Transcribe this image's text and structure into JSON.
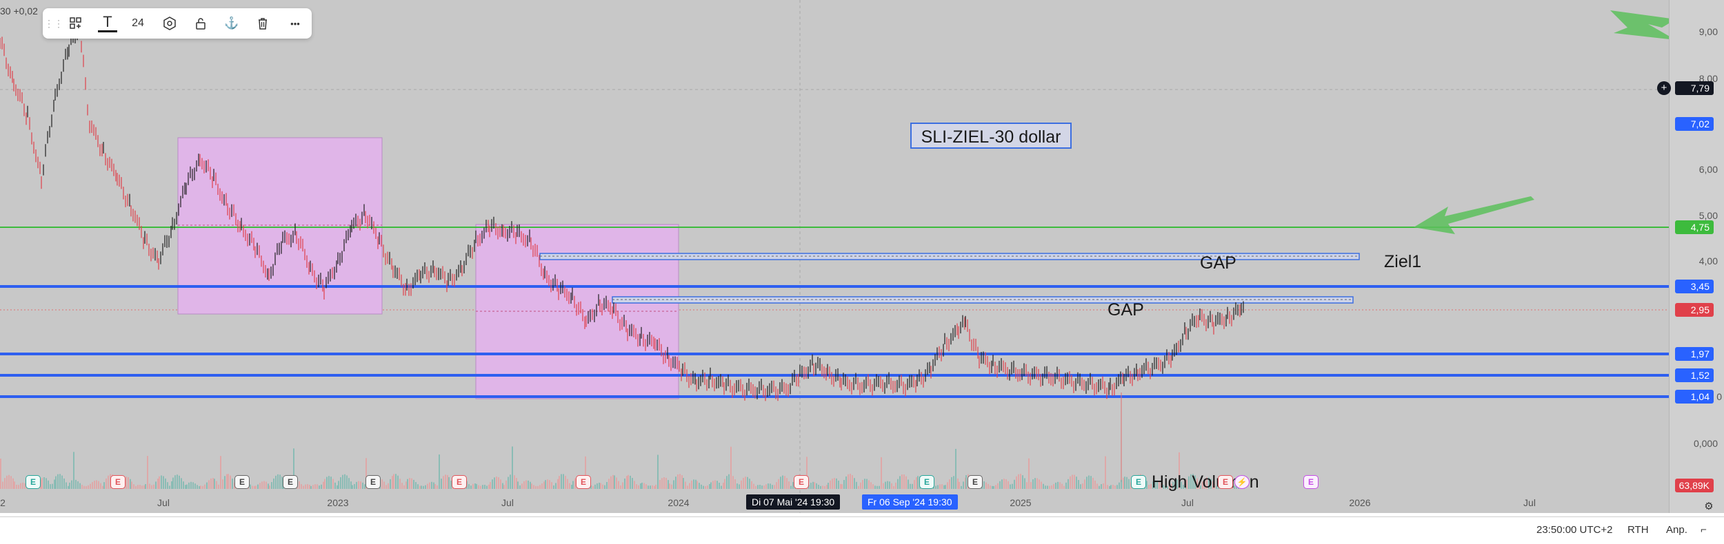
{
  "top_left_value": "30  +0,02",
  "toolbar": {
    "items": [
      {
        "name": "drag-handle-icon",
        "label": "⋮⋮"
      },
      {
        "name": "template-icon",
        "label": ""
      },
      {
        "name": "text-color-icon",
        "label": "T"
      },
      {
        "name": "font-size-button",
        "label": "24"
      },
      {
        "name": "settings-icon",
        "label": ""
      },
      {
        "name": "lock-icon",
        "label": ""
      },
      {
        "name": "anchor-icon",
        "label": "⚓"
      },
      {
        "name": "trash-icon",
        "label": ""
      },
      {
        "name": "more-icon",
        "label": "•••"
      }
    ]
  },
  "price_scale": {
    "ticks": [
      "9,00",
      "8,00",
      "6,00",
      "5,00",
      "4,00",
      "0,000"
    ],
    "badges": [
      {
        "label": "7,79",
        "kind": "dark"
      },
      {
        "label": "7,02",
        "kind": "blue"
      },
      {
        "label": "4,75",
        "kind": "green"
      },
      {
        "label": "3,45",
        "kind": "blue"
      },
      {
        "label": "2,95",
        "kind": "red"
      },
      {
        "label": "1,97",
        "kind": "blue"
      },
      {
        "label": "1,52",
        "kind": "blue"
      },
      {
        "label": "1,04",
        "kind": "blue"
      },
      {
        "label": "63,89K",
        "kind": "red"
      }
    ],
    "stray_zero": "0",
    "crosshair_plus": "+"
  },
  "annotations": {
    "sli_target": "SLI-ZIEL-30 dollar",
    "gap_upper": "GAP",
    "gap_lower": "GAP",
    "ziel1": "Ziel1",
    "high_volume": "High Volumen"
  },
  "events": [
    {
      "kind": "earnings-good",
      "label": "E"
    },
    {
      "kind": "earnings",
      "label": "E"
    },
    {
      "kind": "event",
      "label": "E"
    },
    {
      "kind": "event",
      "label": "E"
    },
    {
      "kind": "event",
      "label": "E"
    },
    {
      "kind": "earnings",
      "label": "E"
    },
    {
      "kind": "earnings",
      "label": "E"
    },
    {
      "kind": "earnings",
      "label": "E"
    },
    {
      "kind": "earnings-good",
      "label": "E"
    },
    {
      "kind": "event",
      "label": "E"
    },
    {
      "kind": "earnings-good",
      "label": "E"
    },
    {
      "kind": "earnings",
      "label": "E"
    },
    {
      "kind": "future",
      "label": "E"
    }
  ],
  "time_axis": {
    "labels": [
      "2",
      "Jul",
      "2023",
      "Jul",
      "2024",
      "2025",
      "Jul",
      "2026",
      "Jul"
    ],
    "crosshair_label": "Di 07 Mai '24   19:30",
    "selection_label": "Fr 06 Sep '24   19:30"
  },
  "bottom_bar": {
    "time": "23:50:00 UTC+2",
    "session": "RTH",
    "adjust": "Anp.",
    "settings_icon": "⌐"
  },
  "colors": {
    "background": "#c8c8c8",
    "level_blue": "#2e5ff0",
    "level_green": "#3dbb3d",
    "zone_pink": "#e0b5e8",
    "arrow_green": "#5cbf5c",
    "candle_up": "#1f1f1f",
    "candle_down": "#e0404a"
  }
}
